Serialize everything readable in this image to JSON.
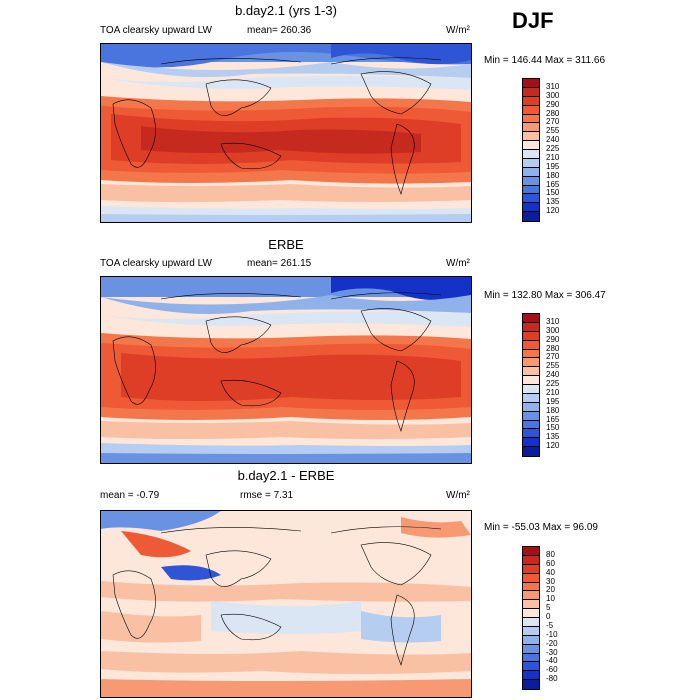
{
  "season": "DJF",
  "panels": [
    {
      "id": "model",
      "title": "b.day2.1 (yrs 1-3)",
      "left_label": "TOA clearsky upward LW",
      "mid_label": "mean= 260.36",
      "unit": "W/m²",
      "minmax": "Min = 146.44 Max = 311.66",
      "levels": [
        "310",
        "300",
        "290",
        "280",
        "270",
        "255",
        "240",
        "225",
        "210",
        "195",
        "180",
        "165",
        "150",
        "135",
        "120"
      ],
      "colors": [
        "#a50f15",
        "#c62a1f",
        "#de3d26",
        "#ee5a36",
        "#f4774b",
        "#f79a74",
        "#f9c0a4",
        "#fde7da",
        "#dbe6f5",
        "#b4cdf0",
        "#8fb2ea",
        "#6992e3",
        "#4a74de",
        "#2f55d6",
        "#1432c8",
        "#0a1d9c"
      ]
    },
    {
      "id": "obs",
      "title": "ERBE",
      "left_label": "TOA clearsky upward LW",
      "mid_label": "mean= 261.15",
      "unit": "W/m²",
      "minmax": "Min = 132.80 Max = 306.47",
      "levels": [
        "310",
        "300",
        "290",
        "280",
        "270",
        "255",
        "240",
        "225",
        "210",
        "195",
        "180",
        "165",
        "150",
        "135",
        "120"
      ],
      "colors": [
        "#a50f15",
        "#c62a1f",
        "#de3d26",
        "#ee5a36",
        "#f4774b",
        "#f79a74",
        "#f9c0a4",
        "#fde7da",
        "#dbe6f5",
        "#b4cdf0",
        "#8fb2ea",
        "#6992e3",
        "#4a74de",
        "#2f55d6",
        "#1432c8",
        "#0a1d9c"
      ]
    },
    {
      "id": "diff",
      "title": "b.day2.1 - ERBE",
      "left_label": "mean =  -0.79",
      "mid_label": "rmse =   7.31",
      "unit": "W/m²",
      "minmax": "Min = -55.03 Max =  96.09",
      "levels": [
        "80",
        "60",
        "40",
        "30",
        "20",
        "10",
        "5",
        "0",
        "-5",
        "-10",
        "-20",
        "-30",
        "-40",
        "-60",
        "-80"
      ],
      "colors": [
        "#a50f15",
        "#c62a1f",
        "#de3d26",
        "#ee5a36",
        "#f4774b",
        "#f79a74",
        "#f9c0a4",
        "#fde7da",
        "#dbe6f5",
        "#b4cdf0",
        "#8fb2ea",
        "#6992e3",
        "#4a74de",
        "#2f55d6",
        "#1432c8",
        "#0a1d9c"
      ]
    }
  ]
}
